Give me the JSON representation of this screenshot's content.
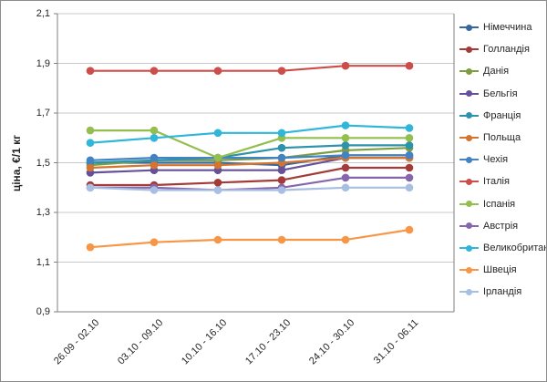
{
  "chart_data": {
    "type": "line",
    "title": "",
    "ylabel": "ціна, €/1 кг",
    "xlabel": "",
    "ylim": [
      0.9,
      2.1
    ],
    "grid": true,
    "legend_position": "right",
    "ytick_labels": [
      "2,1",
      "1,9",
      "1,7",
      "1,5",
      "1,3",
      "1,1",
      "0,9"
    ],
    "ytick_values": [
      2.1,
      1.9,
      1.7,
      1.5,
      1.3,
      1.1,
      0.9
    ],
    "categories": [
      "26.09 - 02.10",
      "03.10 - 09.10",
      "10.10 - 16.10",
      "17.10 - 23.10",
      "24.10 - 30.10",
      "31.10 - 06.11"
    ],
    "series": [
      {
        "name": "Німеччина",
        "color": "#38679E",
        "values": [
          1.5,
          1.5,
          1.5,
          1.49,
          1.53,
          1.53
        ]
      },
      {
        "name": "Голландія",
        "color": "#A33C39",
        "values": [
          1.41,
          1.41,
          1.42,
          1.43,
          1.48,
          1.48
        ]
      },
      {
        "name": "Данія",
        "color": "#7E9D41",
        "values": [
          1.49,
          1.51,
          1.51,
          1.52,
          1.55,
          1.56
        ]
      },
      {
        "name": "Бельгія",
        "color": "#655099",
        "values": [
          1.46,
          1.47,
          1.47,
          1.47,
          1.52,
          1.52
        ]
      },
      {
        "name": "Франція",
        "color": "#2C93AB",
        "values": [
          1.5,
          1.51,
          1.52,
          1.56,
          1.57,
          1.57
        ]
      },
      {
        "name": "Польща",
        "color": "#D4742F",
        "values": [
          1.48,
          1.49,
          1.49,
          1.5,
          1.52,
          1.52
        ]
      },
      {
        "name": "Чехія",
        "color": "#4383C4",
        "values": [
          1.51,
          1.52,
          1.52,
          1.52,
          1.53,
          1.53
        ]
      },
      {
        "name": "Італія",
        "color": "#CC4E4B",
        "values": [
          1.87,
          1.87,
          1.87,
          1.87,
          1.89,
          1.89
        ]
      },
      {
        "name": "Іспанія",
        "color": "#94BE4E",
        "values": [
          1.63,
          1.63,
          1.52,
          1.6,
          1.6,
          1.6
        ]
      },
      {
        "name": "Австрія",
        "color": "#8667AD",
        "values": [
          1.4,
          1.4,
          1.39,
          1.4,
          1.44,
          1.44
        ]
      },
      {
        "name": "Великобританія",
        "color": "#2FB6D9",
        "values": [
          1.58,
          1.6,
          1.62,
          1.62,
          1.65,
          1.64
        ]
      },
      {
        "name": "Швеція",
        "color": "#F79646",
        "values": [
          1.16,
          1.18,
          1.19,
          1.19,
          1.19,
          1.23
        ]
      },
      {
        "name": "Ірландія",
        "color": "#A8BFE4",
        "values": [
          1.4,
          1.39,
          1.39,
          1.39,
          1.4,
          1.4
        ]
      }
    ]
  }
}
